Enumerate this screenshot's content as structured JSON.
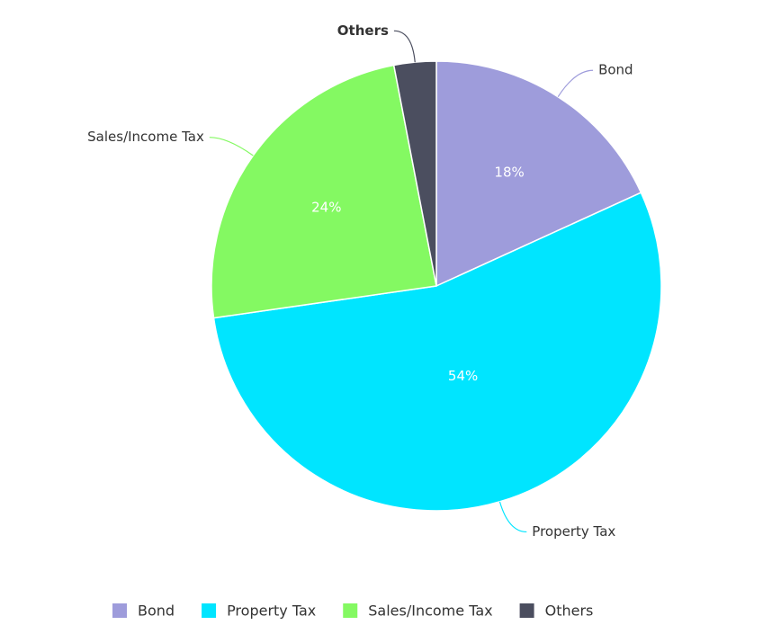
{
  "chart_data": {
    "type": "pie",
    "categories": [
      "Bond",
      "Property Tax",
      "Sales/Income Tax",
      "Others"
    ],
    "values": [
      18,
      54,
      24,
      3
    ],
    "value_labels": [
      "18%",
      "54%",
      "24%",
      null
    ],
    "colors": [
      "#9e9cdb",
      "#00e5ff",
      "#84f962",
      "#4b4e5f"
    ],
    "legend": "bottom"
  }
}
